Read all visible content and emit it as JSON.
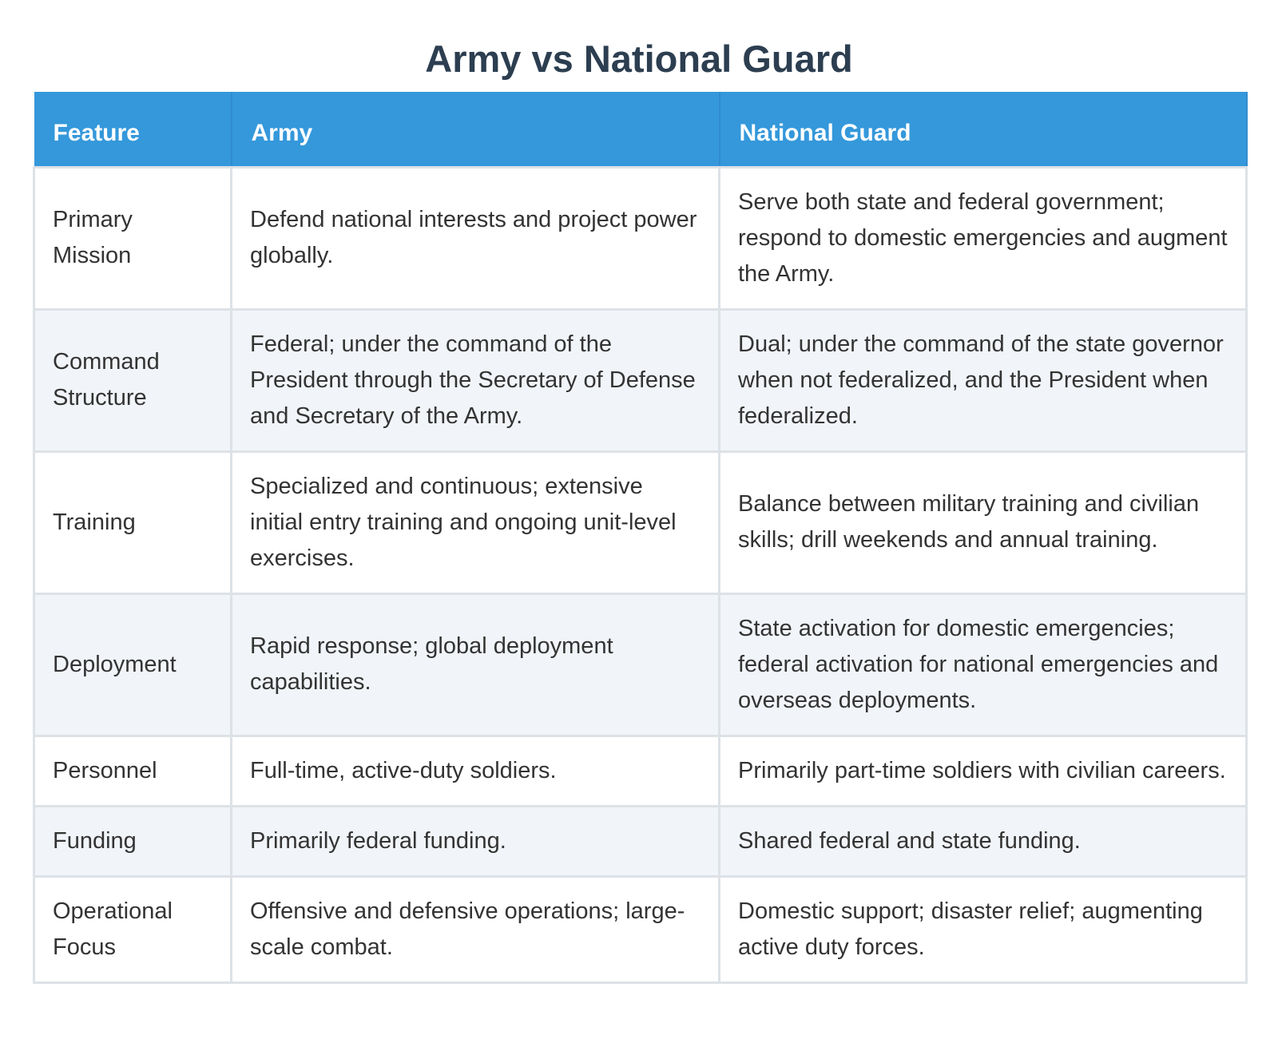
{
  "title": "Army vs National Guard",
  "table": {
    "header": [
      "Feature",
      "Army",
      "National Guard"
    ],
    "rows": [
      [
        "Primary Mission",
        "Defend national interests and project power globally.",
        "Serve both state and federal government; respond to domestic emergencies and augment the Army."
      ],
      [
        "Command Structure",
        "Federal; under the command of the President through the Secretary of Defense and Secretary of the Army.",
        "Dual; under the command of the state governor when not federalized, and the President when federalized."
      ],
      [
        "Training",
        "Specialized and continuous; extensive initial entry training and ongoing unit-level exercises.",
        "Balance between military training and civilian skills; drill weekends and annual training."
      ],
      [
        "Deployment",
        "Rapid response; global deployment capabilities.",
        "State activation for domestic emergencies; federal activation for national emergencies and overseas deployments."
      ],
      [
        "Personnel",
        "Full-time, active-duty soldiers.",
        "Primarily part-time soldiers with civilian careers."
      ],
      [
        "Funding",
        "Primarily federal funding.",
        "Shared federal and state funding."
      ],
      [
        "Operational Focus",
        "Offensive and defensive operations; large-scale combat.",
        "Domestic support; disaster relief; augmenting active duty forces."
      ]
    ]
  }
}
